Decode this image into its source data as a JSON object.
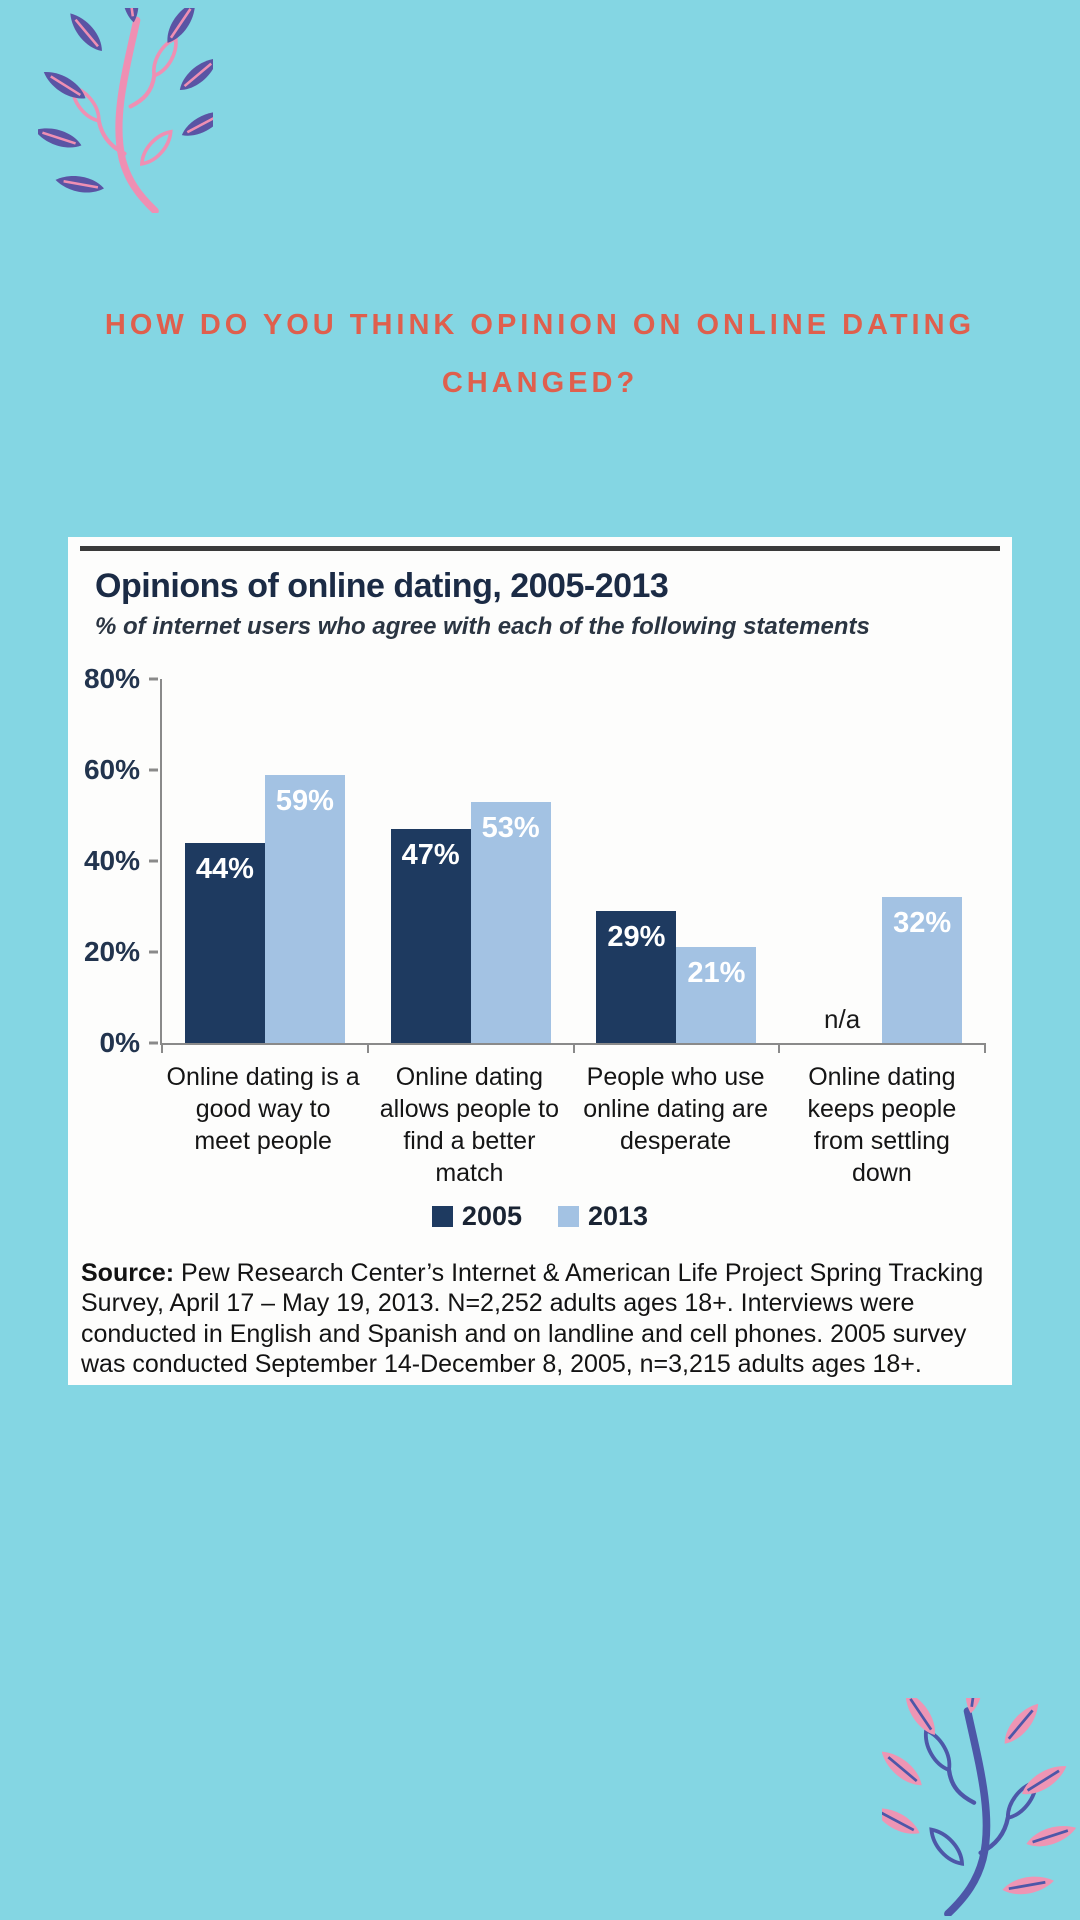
{
  "heading": {
    "lines": [
      "HOW DO YOU THINK OPINION ON ONLINE DATING",
      "CHANGED?"
    ]
  },
  "colors": {
    "page_bg": "#84d6e3",
    "heading": "#df5f4d",
    "card_bg": "#fdfdfc",
    "rule": "#3a3a3a",
    "title": "#1b2b45",
    "subtitle": "#2b3542",
    "axis": "#8a8a8a",
    "axis_label": "#22344e",
    "bar_value": "#ffffff",
    "na_label": "#1a1a1a",
    "category_label": "#151515",
    "legend_text": "#1a2433",
    "source_text": "#131313",
    "leaf_purple": "#5a54a4",
    "leaf_pink": "#ef8fb3",
    "leaf_pink2": "#ee95b4",
    "leaf_blue": "#4d57a8"
  },
  "chart_data": {
    "type": "bar",
    "title": "Opinions of online dating, 2005-2013",
    "subtitle": "% of internet users who agree with each of the following statements",
    "categories": [
      "Online dating is a good way to meet people",
      "Online dating allows people to find a better match",
      "People who use online dating are desperate",
      "Online dating keeps people from settling down"
    ],
    "series": [
      {
        "name": "2005",
        "color": "#1e3a60",
        "values": [
          44,
          47,
          29,
          null
        ]
      },
      {
        "name": "2013",
        "color": "#a3c2e3",
        "values": [
          59,
          53,
          21,
          32
        ]
      }
    ],
    "value_suffix": "%",
    "na_text": "n/a",
    "y_axis": {
      "min": 0,
      "max": 80,
      "tick_step": 20,
      "tick_labels": [
        "0%",
        "20%",
        "40%",
        "60%",
        "80%"
      ]
    },
    "grid": false,
    "legend_position": "bottom"
  },
  "source": {
    "label": "Source:",
    "text": " Pew Research Center’s Internet & American Life Project Spring Tracking Survey, April 17 – May 19, 2013. N=2,252 adults ages 18+. Interviews were conducted in English and Spanish and on landline and cell phones.  2005 survey was conducted September 14-December 8, 2005, n=3,215 adults ages 18+."
  }
}
